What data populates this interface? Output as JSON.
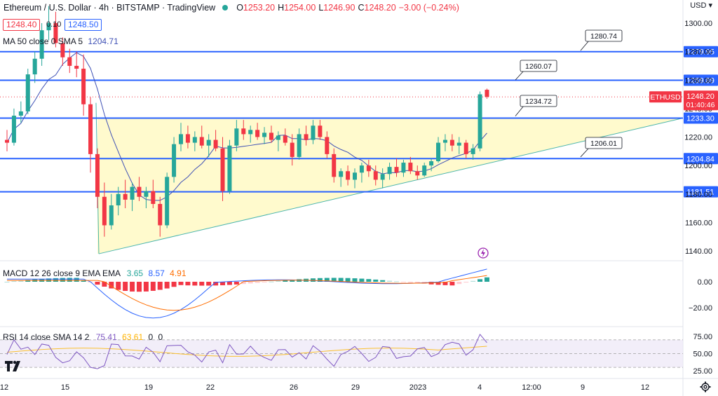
{
  "header": {
    "symbol_title": "Ethereum / U.S. Dollar · 4h · BITSTAMP · TradingView",
    "open_label": "O",
    "open": "1253.20",
    "high_label": "H",
    "high": "1254.00",
    "low_label": "L",
    "low": "1246.90",
    "close_label": "C",
    "close": "1248.20",
    "change": "−3.00 (−0.24%)",
    "bid": "1248.40",
    "spread": "0.10",
    "ask": "1248.50",
    "ma_label": "MA 50 close 0 SMA 5",
    "ma_value": "1204.71"
  },
  "currency": "USD",
  "price_axis": {
    "ticks": [
      "1300.00",
      "1280.00",
      "1260.00",
      "1240.00",
      "1220.00",
      "1200.00",
      "1180.00",
      "1160.00",
      "1140.00"
    ],
    "current_symbol": "ETHUSD",
    "current_price": "1248.20",
    "countdown": "01:40:46"
  },
  "levels": [
    {
      "value": 1279.95,
      "label": "1279.95"
    },
    {
      "value": 1259.89,
      "label": "1259.89"
    },
    {
      "value": 1233.3,
      "label": "1233.30"
    },
    {
      "value": 1204.84,
      "label": "1204.84"
    },
    {
      "value": 1181.51,
      "label": "1181.51"
    }
  ],
  "callouts": [
    {
      "label": "1280.74",
      "value": 1280.74
    },
    {
      "label": "1260.07",
      "value": 1260.07
    },
    {
      "label": "1234.72",
      "value": 1234.72
    },
    {
      "label": "1206.01",
      "value": 1206.01
    }
  ],
  "macd": {
    "label": "MACD 12 26 close 9 EMA EMA",
    "hist": "3.65",
    "macd": "8.57",
    "signal": "4.91",
    "ticks": [
      "0.00",
      "−20.00"
    ]
  },
  "rsi": {
    "label": "RSI 14 close SMA 14 2",
    "value": "75.41",
    "sma": "63.61",
    "extra1": "0",
    "extra2": "0",
    "ticks": [
      "75.00",
      "50.00",
      "25.00"
    ]
  },
  "time_axis": [
    "12",
    "15",
    "19",
    "22",
    "26",
    "29",
    "2023",
    "4",
    "12:00",
    "9",
    "12"
  ],
  "colors": {
    "up": "#26a69a",
    "down": "#f23645",
    "level": "#2962ff",
    "ma": "#3f51b5",
    "zone": "#fff9c4",
    "macd": "#2962ff",
    "signal": "#ff6d00",
    "rsi": "#7e57c2"
  },
  "chart_data": {
    "type": "candlestick",
    "title": "Ethereum / U.S. Dollar · 4h · BITSTAMP · TradingView",
    "ylim": [
      1130,
      1310
    ],
    "candles": [
      {
        "o": 1218,
        "h": 1225,
        "l": 1210,
        "c": 1216
      },
      {
        "o": 1216,
        "h": 1240,
        "l": 1214,
        "c": 1235
      },
      {
        "o": 1235,
        "h": 1245,
        "l": 1230,
        "c": 1238
      },
      {
        "o": 1238,
        "h": 1268,
        "l": 1236,
        "c": 1264
      },
      {
        "o": 1264,
        "h": 1280,
        "l": 1258,
        "c": 1275
      },
      {
        "o": 1275,
        "h": 1300,
        "l": 1270,
        "c": 1295
      },
      {
        "o": 1295,
        "h": 1312,
        "l": 1288,
        "c": 1300
      },
      {
        "o": 1300,
        "h": 1308,
        "l": 1283,
        "c": 1286
      },
      {
        "o": 1286,
        "h": 1290,
        "l": 1270,
        "c": 1276
      },
      {
        "o": 1276,
        "h": 1282,
        "l": 1265,
        "c": 1270
      },
      {
        "o": 1270,
        "h": 1280,
        "l": 1262,
        "c": 1268
      },
      {
        "o": 1268,
        "h": 1278,
        "l": 1235,
        "c": 1243
      },
      {
        "o": 1243,
        "h": 1248,
        "l": 1195,
        "c": 1208
      },
      {
        "o": 1208,
        "h": 1212,
        "l": 1170,
        "c": 1178
      },
      {
        "o": 1178,
        "h": 1188,
        "l": 1150,
        "c": 1158
      },
      {
        "o": 1158,
        "h": 1180,
        "l": 1155,
        "c": 1172
      },
      {
        "o": 1172,
        "h": 1185,
        "l": 1165,
        "c": 1180
      },
      {
        "o": 1180,
        "h": 1190,
        "l": 1170,
        "c": 1176
      },
      {
        "o": 1176,
        "h": 1188,
        "l": 1168,
        "c": 1185
      },
      {
        "o": 1185,
        "h": 1192,
        "l": 1175,
        "c": 1178
      },
      {
        "o": 1178,
        "h": 1185,
        "l": 1170,
        "c": 1182
      },
      {
        "o": 1182,
        "h": 1190,
        "l": 1170,
        "c": 1173
      },
      {
        "o": 1173,
        "h": 1178,
        "l": 1150,
        "c": 1158
      },
      {
        "o": 1158,
        "h": 1195,
        "l": 1156,
        "c": 1192
      },
      {
        "o": 1192,
        "h": 1220,
        "l": 1188,
        "c": 1215
      },
      {
        "o": 1215,
        "h": 1230,
        "l": 1210,
        "c": 1222
      },
      {
        "o": 1222,
        "h": 1228,
        "l": 1212,
        "c": 1216
      },
      {
        "o": 1216,
        "h": 1224,
        "l": 1210,
        "c": 1220
      },
      {
        "o": 1220,
        "h": 1228,
        "l": 1212,
        "c": 1214
      },
      {
        "o": 1214,
        "h": 1222,
        "l": 1206,
        "c": 1218
      },
      {
        "o": 1218,
        "h": 1225,
        "l": 1210,
        "c": 1212
      },
      {
        "o": 1212,
        "h": 1220,
        "l": 1175,
        "c": 1182
      },
      {
        "o": 1182,
        "h": 1218,
        "l": 1180,
        "c": 1214
      },
      {
        "o": 1214,
        "h": 1232,
        "l": 1210,
        "c": 1226
      },
      {
        "o": 1226,
        "h": 1232,
        "l": 1218,
        "c": 1222
      },
      {
        "o": 1222,
        "h": 1228,
        "l": 1216,
        "c": 1225
      },
      {
        "o": 1225,
        "h": 1230,
        "l": 1218,
        "c": 1220
      },
      {
        "o": 1220,
        "h": 1227,
        "l": 1215,
        "c": 1223
      },
      {
        "o": 1223,
        "h": 1228,
        "l": 1216,
        "c": 1218
      },
      {
        "o": 1218,
        "h": 1224,
        "l": 1210,
        "c": 1221
      },
      {
        "o": 1221,
        "h": 1226,
        "l": 1214,
        "c": 1216
      },
      {
        "o": 1216,
        "h": 1222,
        "l": 1200,
        "c": 1206
      },
      {
        "o": 1206,
        "h": 1226,
        "l": 1204,
        "c": 1222
      },
      {
        "o": 1222,
        "h": 1228,
        "l": 1214,
        "c": 1218
      },
      {
        "o": 1218,
        "h": 1232,
        "l": 1215,
        "c": 1228
      },
      {
        "o": 1228,
        "h": 1232,
        "l": 1218,
        "c": 1220
      },
      {
        "o": 1220,
        "h": 1224,
        "l": 1205,
        "c": 1208
      },
      {
        "o": 1208,
        "h": 1212,
        "l": 1188,
        "c": 1192
      },
      {
        "o": 1192,
        "h": 1198,
        "l": 1185,
        "c": 1196
      },
      {
        "o": 1196,
        "h": 1200,
        "l": 1186,
        "c": 1190
      },
      {
        "o": 1190,
        "h": 1198,
        "l": 1184,
        "c": 1195
      },
      {
        "o": 1195,
        "h": 1202,
        "l": 1188,
        "c": 1200
      },
      {
        "o": 1200,
        "h": 1204,
        "l": 1192,
        "c": 1196
      },
      {
        "o": 1196,
        "h": 1200,
        "l": 1186,
        "c": 1190
      },
      {
        "o": 1190,
        "h": 1198,
        "l": 1184,
        "c": 1194
      },
      {
        "o": 1194,
        "h": 1202,
        "l": 1190,
        "c": 1199
      },
      {
        "o": 1199,
        "h": 1205,
        "l": 1192,
        "c": 1195
      },
      {
        "o": 1195,
        "h": 1204,
        "l": 1192,
        "c": 1202
      },
      {
        "o": 1202,
        "h": 1206,
        "l": 1194,
        "c": 1196
      },
      {
        "o": 1196,
        "h": 1200,
        "l": 1190,
        "c": 1193
      },
      {
        "o": 1193,
        "h": 1202,
        "l": 1192,
        "c": 1200
      },
      {
        "o": 1200,
        "h": 1205,
        "l": 1196,
        "c": 1203
      },
      {
        "o": 1203,
        "h": 1220,
        "l": 1202,
        "c": 1216
      },
      {
        "o": 1216,
        "h": 1222,
        "l": 1210,
        "c": 1218
      },
      {
        "o": 1218,
        "h": 1222,
        "l": 1210,
        "c": 1214
      },
      {
        "o": 1214,
        "h": 1220,
        "l": 1208,
        "c": 1216
      },
      {
        "o": 1216,
        "h": 1218,
        "l": 1205,
        "c": 1208
      },
      {
        "o": 1208,
        "h": 1215,
        "l": 1204,
        "c": 1212
      },
      {
        "o": 1212,
        "h": 1252,
        "l": 1210,
        "c": 1250
      },
      {
        "o": 1253.2,
        "h": 1254,
        "l": 1246.9,
        "c": 1248.2
      }
    ]
  }
}
